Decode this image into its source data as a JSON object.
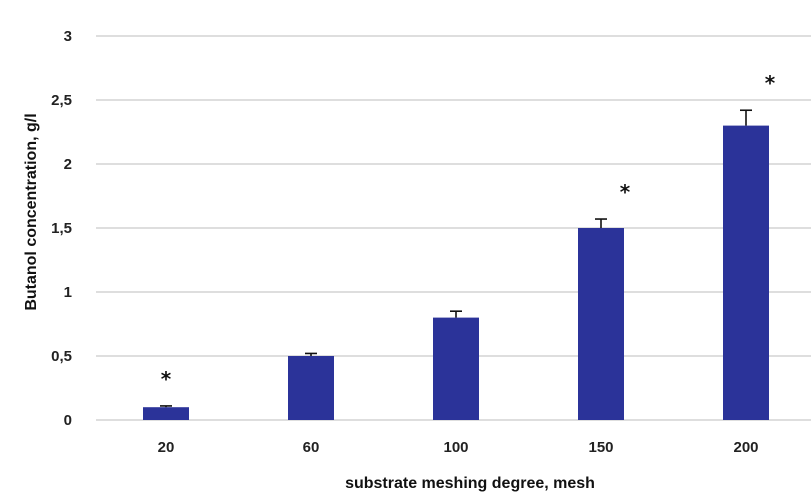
{
  "chart_data": {
    "type": "bar",
    "categories": [
      "20",
      "60",
      "100",
      "150",
      "200"
    ],
    "values": [
      0.1,
      0.5,
      0.8,
      1.5,
      2.3
    ],
    "errors": [
      0.01,
      0.02,
      0.05,
      0.07,
      0.12
    ],
    "significance": [
      "*",
      "",
      "",
      "*",
      "*"
    ],
    "xlabel": "substrate meshing degree,  mesh",
    "ylabel": "Butanol concentration, g/l",
    "ylim": [
      0,
      3
    ],
    "yticks": [
      "0",
      "0,5",
      "1",
      "1,5",
      "2",
      "2,5",
      "3"
    ],
    "ytick_values": [
      0,
      0.5,
      1,
      1.5,
      2,
      2.5,
      3
    ],
    "bar_color": "#2b3399",
    "grid": true,
    "legend": "none"
  }
}
